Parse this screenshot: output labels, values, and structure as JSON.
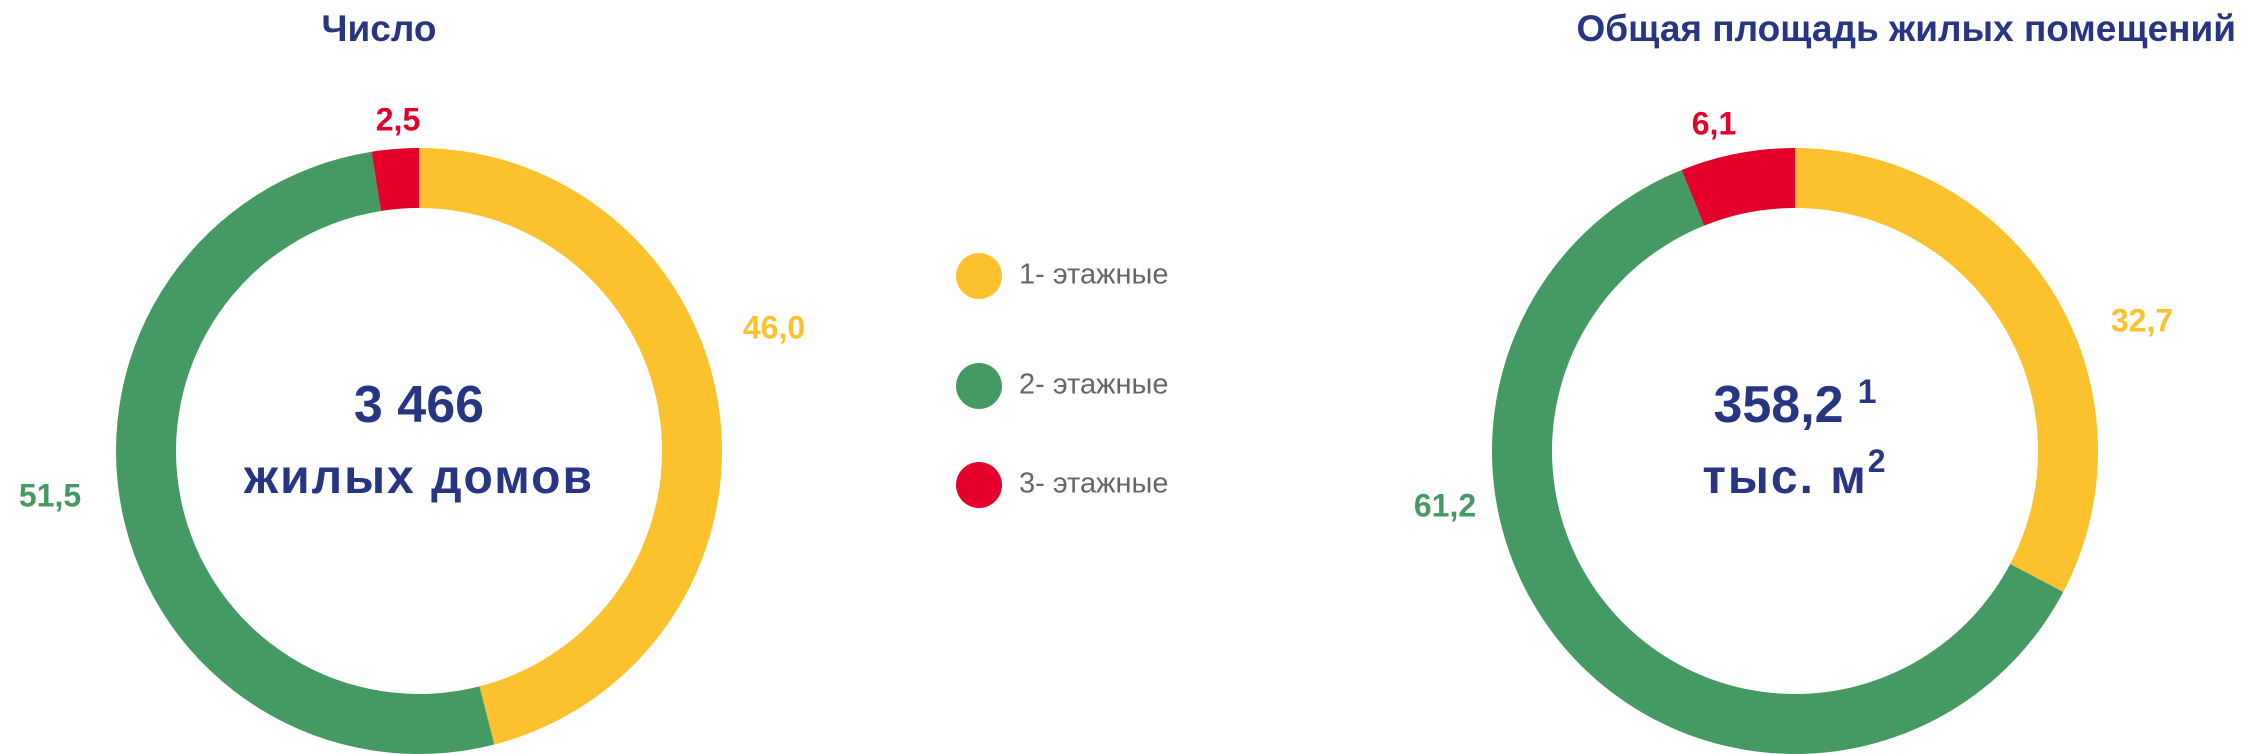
{
  "chart_data": [
    {
      "type": "pie",
      "title": "Число",
      "categories": [
        "1- этажные",
        "2- этажные",
        "3- этажные"
      ],
      "values": [
        46.0,
        51.5,
        2.5
      ],
      "value_labels": [
        "46,0",
        "51,5",
        "2,5"
      ],
      "colors": [
        "#fcc22e",
        "#459a63",
        "#e4002b"
      ],
      "center_value": "3 466",
      "center_unit": "жилых домов"
    },
    {
      "type": "pie",
      "title": "Общая площадь жилых помещений",
      "values": [
        32.7,
        61.2,
        6.1
      ],
      "value_labels": [
        "32,7",
        "61,2",
        "6,1"
      ],
      "colors": [
        "#fcc22e",
        "#459a63",
        "#e4002b"
      ],
      "center_value": "358,2",
      "center_value_note": "1",
      "center_unit": "тыс. м",
      "center_unit_sup": "2"
    }
  ]
}
